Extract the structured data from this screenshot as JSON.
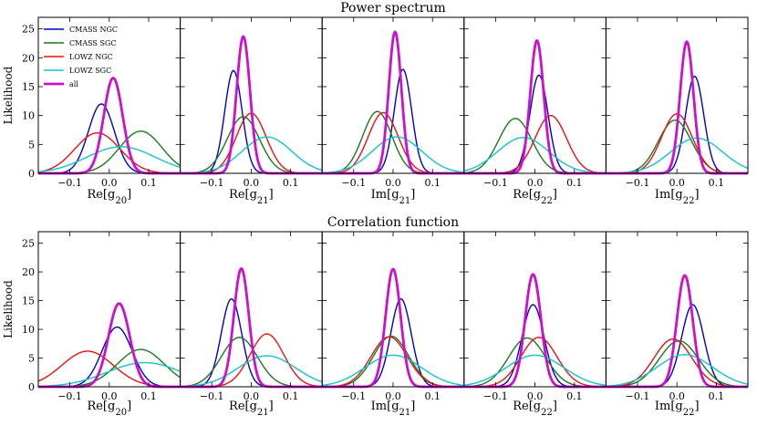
{
  "chart_data": {
    "type": "line",
    "rows": [
      {
        "title": "Power spectrum",
        "ylabel": "Likelihood",
        "panels": [
          {
            "xlabel": "Re[g20]",
            "sub": "20",
            "series": [
              {
                "name": "CMASS NGC",
                "peak": 12.0,
                "mu": -0.02,
                "sigma": 0.033
              },
              {
                "name": "CMASS SGC",
                "peak": 7.3,
                "mu": 0.08,
                "sigma": 0.054
              },
              {
                "name": "LOWZ NGC",
                "peak": 7.0,
                "mu": -0.03,
                "sigma": 0.057
              },
              {
                "name": "LOWZ SGC",
                "peak": 4.6,
                "mu": 0.03,
                "sigma": 0.087
              },
              {
                "name": "all",
                "peak": 16.5,
                "mu": 0.01,
                "sigma": 0.024
              }
            ]
          },
          {
            "xlabel": "Re[g21]",
            "sub": "21",
            "series": [
              {
                "name": "CMASS NGC",
                "peak": 17.8,
                "mu": -0.045,
                "sigma": 0.022
              },
              {
                "name": "CMASS SGC",
                "peak": 9.8,
                "mu": -0.02,
                "sigma": 0.041
              },
              {
                "name": "LOWZ NGC",
                "peak": 10.4,
                "mu": 0.0,
                "sigma": 0.038
              },
              {
                "name": "LOWZ SGC",
                "peak": 6.3,
                "mu": 0.04,
                "sigma": 0.063
              },
              {
                "name": "all",
                "peak": 23.7,
                "mu": -0.02,
                "sigma": 0.017
              }
            ]
          },
          {
            "xlabel": "Im[g21]",
            "sub": "21",
            "series": [
              {
                "name": "CMASS NGC",
                "peak": 18.0,
                "mu": 0.025,
                "sigma": 0.022
              },
              {
                "name": "CMASS SGC",
                "peak": 10.7,
                "mu": -0.04,
                "sigma": 0.037
              },
              {
                "name": "LOWZ NGC",
                "peak": 10.5,
                "mu": -0.025,
                "sigma": 0.038
              },
              {
                "name": "LOWZ SGC",
                "peak": 6.3,
                "mu": 0.01,
                "sigma": 0.063
              },
              {
                "name": "all",
                "peak": 24.5,
                "mu": 0.005,
                "sigma": 0.016
              }
            ]
          },
          {
            "xlabel": "Re[g22]",
            "sub": "22",
            "series": [
              {
                "name": "CMASS NGC",
                "peak": 17.0,
                "mu": 0.01,
                "sigma": 0.023
              },
              {
                "name": "CMASS SGC",
                "peak": 9.5,
                "mu": -0.05,
                "sigma": 0.042
              },
              {
                "name": "LOWZ NGC",
                "peak": 10.0,
                "mu": 0.04,
                "sigma": 0.04
              },
              {
                "name": "LOWZ SGC",
                "peak": 6.2,
                "mu": -0.03,
                "sigma": 0.065
              },
              {
                "name": "all",
                "peak": 23.0,
                "mu": 0.005,
                "sigma": 0.017
              }
            ]
          },
          {
            "xlabel": "Im[g22]",
            "sub": "22",
            "series": [
              {
                "name": "CMASS NGC",
                "peak": 16.8,
                "mu": 0.045,
                "sigma": 0.023
              },
              {
                "name": "CMASS SGC",
                "peak": 9.2,
                "mu": -0.005,
                "sigma": 0.042
              },
              {
                "name": "LOWZ NGC",
                "peak": 10.3,
                "mu": 0.0,
                "sigma": 0.039
              },
              {
                "name": "LOWZ SGC",
                "peak": 6.1,
                "mu": 0.05,
                "sigma": 0.066
              },
              {
                "name": "all",
                "peak": 22.8,
                "mu": 0.025,
                "sigma": 0.017
              }
            ]
          }
        ]
      },
      {
        "title": "Correlation function",
        "ylabel": "Likelihood",
        "panels": [
          {
            "xlabel": "Re[g20]",
            "sub": "20",
            "series": [
              {
                "name": "CMASS NGC",
                "peak": 10.4,
                "mu": 0.02,
                "sigma": 0.038
              },
              {
                "name": "CMASS SGC",
                "peak": 6.5,
                "mu": 0.08,
                "sigma": 0.06
              },
              {
                "name": "LOWZ NGC",
                "peak": 6.2,
                "mu": -0.055,
                "sigma": 0.065
              },
              {
                "name": "LOWZ SGC",
                "peak": 4.2,
                "mu": 0.09,
                "sigma": 0.095
              },
              {
                "name": "all",
                "peak": 14.5,
                "mu": 0.025,
                "sigma": 0.027
              }
            ]
          },
          {
            "xlabel": "Re[g21]",
            "sub": "21",
            "series": [
              {
                "name": "CMASS NGC",
                "peak": 15.3,
                "mu": -0.05,
                "sigma": 0.026
              },
              {
                "name": "CMASS SGC",
                "peak": 8.6,
                "mu": -0.03,
                "sigma": 0.046
              },
              {
                "name": "LOWZ NGC",
                "peak": 9.2,
                "mu": 0.04,
                "sigma": 0.043
              },
              {
                "name": "LOWZ SGC",
                "peak": 5.4,
                "mu": 0.04,
                "sigma": 0.073
              },
              {
                "name": "all",
                "peak": 20.6,
                "mu": -0.025,
                "sigma": 0.019
              }
            ]
          },
          {
            "xlabel": "Im[g21]",
            "sub": "21",
            "series": [
              {
                "name": "CMASS NGC",
                "peak": 15.3,
                "mu": 0.02,
                "sigma": 0.026
              },
              {
                "name": "CMASS SGC",
                "peak": 8.8,
                "mu": -0.005,
                "sigma": 0.045
              },
              {
                "name": "LOWZ NGC",
                "peak": 8.7,
                "mu": -0.01,
                "sigma": 0.046
              },
              {
                "name": "LOWZ SGC",
                "peak": 5.5,
                "mu": 0.0,
                "sigma": 0.072
              },
              {
                "name": "all",
                "peak": 20.5,
                "mu": 0.0,
                "sigma": 0.019
              }
            ]
          },
          {
            "xlabel": "Re[g22]",
            "sub": "22",
            "series": [
              {
                "name": "CMASS NGC",
                "peak": 14.3,
                "mu": -0.005,
                "sigma": 0.028
              },
              {
                "name": "CMASS SGC",
                "peak": 8.5,
                "mu": -0.02,
                "sigma": 0.047
              },
              {
                "name": "LOWZ NGC",
                "peak": 8.6,
                "mu": 0.01,
                "sigma": 0.046
              },
              {
                "name": "LOWZ SGC",
                "peak": 5.5,
                "mu": 0.0,
                "sigma": 0.073
              },
              {
                "name": "all",
                "peak": 19.6,
                "mu": -0.005,
                "sigma": 0.02
              }
            ]
          },
          {
            "xlabel": "Im[g22]",
            "sub": "22",
            "series": [
              {
                "name": "CMASS NGC",
                "peak": 14.3,
                "mu": 0.04,
                "sigma": 0.028
              },
              {
                "name": "CMASS SGC",
                "peak": 8.0,
                "mu": 0.005,
                "sigma": 0.05
              },
              {
                "name": "LOWZ NGC",
                "peak": 8.3,
                "mu": -0.01,
                "sigma": 0.048
              },
              {
                "name": "LOWZ SGC",
                "peak": 5.6,
                "mu": 0.02,
                "sigma": 0.071
              },
              {
                "name": "all",
                "peak": 19.4,
                "mu": 0.02,
                "sigma": 0.02
              }
            ]
          }
        ]
      }
    ],
    "xlim": [
      -0.18,
      0.18
    ],
    "ylim": [
      0,
      27
    ],
    "xticks": [
      -0.1,
      0.0,
      0.1
    ],
    "xtick_labels": [
      "−0.1",
      "0.0",
      "0.1"
    ],
    "yticks": [
      0,
      5,
      10,
      15,
      20,
      25
    ],
    "legend": {
      "location": "upper-left",
      "panel": "Power spectrum, first panel",
      "entries": [
        {
          "name": "CMASS NGC",
          "color": "#0000cc"
        },
        {
          "name": "CMASS SGC",
          "color": "#1a7a1a"
        },
        {
          "name": "LOWZ NGC",
          "color": "#ee1111"
        },
        {
          "name": "LOWZ SGC",
          "color": "#11c5cc"
        },
        {
          "name": "all",
          "color": "#cc11cc"
        }
      ]
    }
  }
}
